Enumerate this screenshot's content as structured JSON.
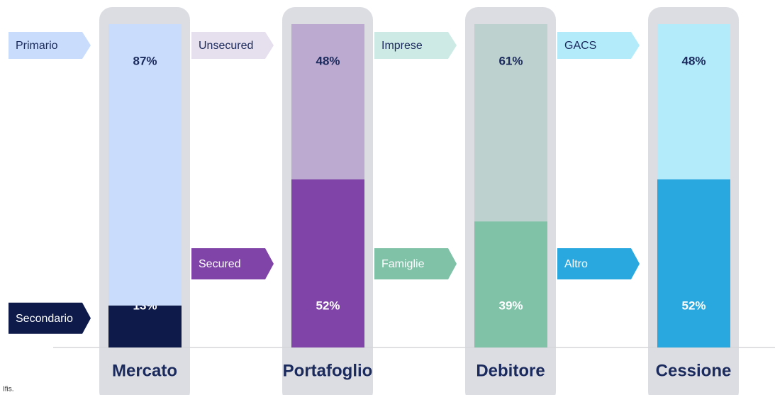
{
  "chart_data": {
    "type": "stacked_bar",
    "categories": [
      "Mercato",
      "Portafoglio",
      "Debitore",
      "Cessione"
    ],
    "ylim": [
      0,
      100
    ],
    "groups": [
      {
        "segments": [
          {
            "name": "Secondario",
            "value": 13,
            "value_label": "13%",
            "color": "#0e1a4a",
            "tag_color": "#0e1a4a",
            "label_color": "#ffffff"
          },
          {
            "name": "Primario",
            "value": 87,
            "value_label": "87%",
            "color": "#c9dcfc",
            "tag_color": "#c9dcfc",
            "label_color": "#1b2a5c"
          }
        ]
      },
      {
        "segments": [
          {
            "name": "Secured",
            "value": 52,
            "value_label": "52%",
            "color": "#8044a8",
            "tag_color": "#8044a8",
            "label_color": "#ffffff"
          },
          {
            "name": "Unsecured",
            "value": 48,
            "value_label": "48%",
            "color": "#bcaad0",
            "tag_color": "#e6e0ee",
            "label_color": "#1b2a5c"
          }
        ]
      },
      {
        "segments": [
          {
            "name": "Famiglie",
            "value": 39,
            "value_label": "39%",
            "color": "#7fc2a8",
            "tag_color": "#7fc2a8",
            "label_color": "#ffffff"
          },
          {
            "name": "Imprese",
            "value": 61,
            "value_label": "61%",
            "color": "#bdd2cf",
            "tag_color": "#cdebe4",
            "label_color": "#1b2a5c"
          }
        ]
      },
      {
        "segments": [
          {
            "name": "Altro",
            "value": 52,
            "value_label": "52%",
            "color": "#29a8e0",
            "tag_color": "#29a8e0",
            "label_color": "#ffffff"
          },
          {
            "name": "GACS",
            "value": 48,
            "value_label": "48%",
            "color": "#b3ebfb",
            "tag_color": "#b3ebfb",
            "label_color": "#1b2a5c"
          }
        ]
      }
    ],
    "source": "Ifis."
  }
}
